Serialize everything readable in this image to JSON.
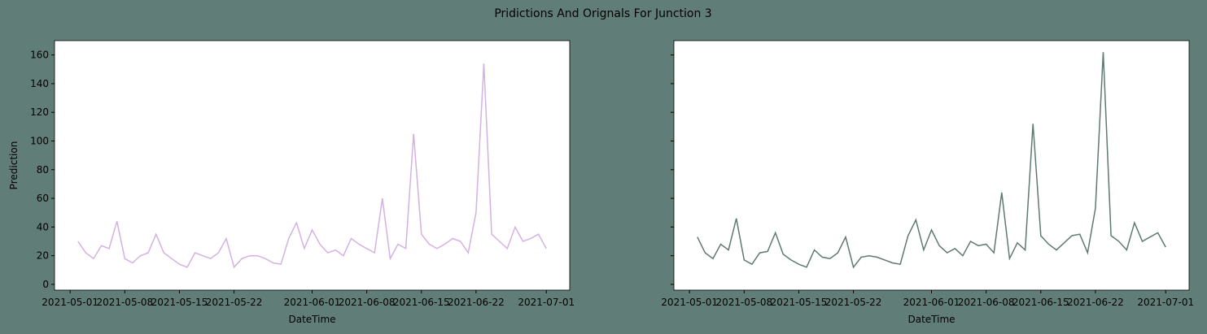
{
  "title": "Pridictions And Orignals For Junction 3",
  "chart_data": [
    {
      "type": "line",
      "xlabel": "DateTime",
      "ylabel": "Prediction",
      "color": "#d4b1e3",
      "x": [
        "2021-05-02",
        "2021-05-03",
        "2021-05-04",
        "2021-05-05",
        "2021-05-06",
        "2021-05-07",
        "2021-05-08",
        "2021-05-09",
        "2021-05-10",
        "2021-05-11",
        "2021-05-12",
        "2021-05-13",
        "2021-05-14",
        "2021-05-15",
        "2021-05-16",
        "2021-05-17",
        "2021-05-18",
        "2021-05-19",
        "2021-05-20",
        "2021-05-21",
        "2021-05-22",
        "2021-05-23",
        "2021-05-24",
        "2021-05-25",
        "2021-05-26",
        "2021-05-27",
        "2021-05-28",
        "2021-05-29",
        "2021-05-30",
        "2021-05-31",
        "2021-06-01",
        "2021-06-02",
        "2021-06-03",
        "2021-06-04",
        "2021-06-05",
        "2021-06-06",
        "2021-06-07",
        "2021-06-08",
        "2021-06-09",
        "2021-06-10",
        "2021-06-11",
        "2021-06-12",
        "2021-06-13",
        "2021-06-14",
        "2021-06-15",
        "2021-06-16",
        "2021-06-17",
        "2021-06-18",
        "2021-06-19",
        "2021-06-20",
        "2021-06-21",
        "2021-06-22",
        "2021-06-23",
        "2021-06-24",
        "2021-06-25",
        "2021-06-26",
        "2021-06-27",
        "2021-06-28",
        "2021-06-29",
        "2021-06-30",
        "2021-07-01"
      ],
      "values": [
        30,
        22,
        18,
        27,
        25,
        44,
        18,
        15,
        20,
        22,
        35,
        22,
        18,
        14,
        12,
        22,
        20,
        18,
        22,
        32,
        12,
        18,
        20,
        20,
        18,
        15,
        14,
        32,
        43,
        25,
        38,
        28,
        22,
        24,
        20,
        32,
        28,
        25,
        22,
        60,
        18,
        28,
        25,
        105,
        35,
        28,
        25,
        28,
        32,
        30,
        22,
        50,
        154,
        35,
        30,
        25,
        40,
        30,
        32,
        35,
        25
      ],
      "xlim": [
        "2021-04-29",
        "2021-07-04"
      ],
      "xticks": [
        "2021-05-01",
        "2021-05-08",
        "2021-05-15",
        "2021-05-22",
        "2021-06-01",
        "2021-06-08",
        "2021-06-15",
        "2021-06-22",
        "2021-07-01"
      ],
      "ylim": [
        -4,
        170
      ],
      "yticks": [
        0,
        20,
        40,
        60,
        80,
        100,
        120,
        140,
        160
      ]
    },
    {
      "type": "line",
      "xlabel": "DateTime",
      "color": "#5f7a72",
      "x": [
        "2021-05-02",
        "2021-05-03",
        "2021-05-04",
        "2021-05-05",
        "2021-05-06",
        "2021-05-07",
        "2021-05-08",
        "2021-05-09",
        "2021-05-10",
        "2021-05-11",
        "2021-05-12",
        "2021-05-13",
        "2021-05-14",
        "2021-05-15",
        "2021-05-16",
        "2021-05-17",
        "2021-05-18",
        "2021-05-19",
        "2021-05-20",
        "2021-05-21",
        "2021-05-22",
        "2021-05-23",
        "2021-05-24",
        "2021-05-25",
        "2021-05-26",
        "2021-05-27",
        "2021-05-28",
        "2021-05-29",
        "2021-05-30",
        "2021-05-31",
        "2021-06-01",
        "2021-06-02",
        "2021-06-03",
        "2021-06-04",
        "2021-06-05",
        "2021-06-06",
        "2021-06-07",
        "2021-06-08",
        "2021-06-09",
        "2021-06-10",
        "2021-06-11",
        "2021-06-12",
        "2021-06-13",
        "2021-06-14",
        "2021-06-15",
        "2021-06-16",
        "2021-06-17",
        "2021-06-18",
        "2021-06-19",
        "2021-06-20",
        "2021-06-21",
        "2021-06-22",
        "2021-06-23",
        "2021-06-24",
        "2021-06-25",
        "2021-06-26",
        "2021-06-27",
        "2021-06-28",
        "2021-06-29",
        "2021-06-30",
        "2021-07-01"
      ],
      "values": [
        33,
        22,
        18,
        28,
        24,
        46,
        17,
        14,
        22,
        23,
        36,
        21,
        17,
        14,
        12,
        24,
        19,
        18,
        22,
        33,
        12,
        19,
        20,
        19,
        17,
        15,
        14,
        34,
        45,
        24,
        38,
        27,
        22,
        25,
        20,
        30,
        27,
        28,
        22,
        64,
        18,
        29,
        24,
        112,
        34,
        28,
        24,
        29,
        34,
        35,
        22,
        53,
        162,
        34,
        30,
        24,
        43,
        30,
        33,
        36,
        26
      ],
      "xlim": [
        "2021-04-29",
        "2021-07-04"
      ],
      "xticks": [
        "2021-05-01",
        "2021-05-08",
        "2021-05-15",
        "2021-05-22",
        "2021-06-01",
        "2021-06-08",
        "2021-06-15",
        "2021-06-22",
        "2021-07-01"
      ],
      "ylim": [
        -4,
        170
      ],
      "yticks": [
        0,
        20,
        40,
        60,
        80,
        100,
        120,
        140,
        160
      ]
    }
  ]
}
